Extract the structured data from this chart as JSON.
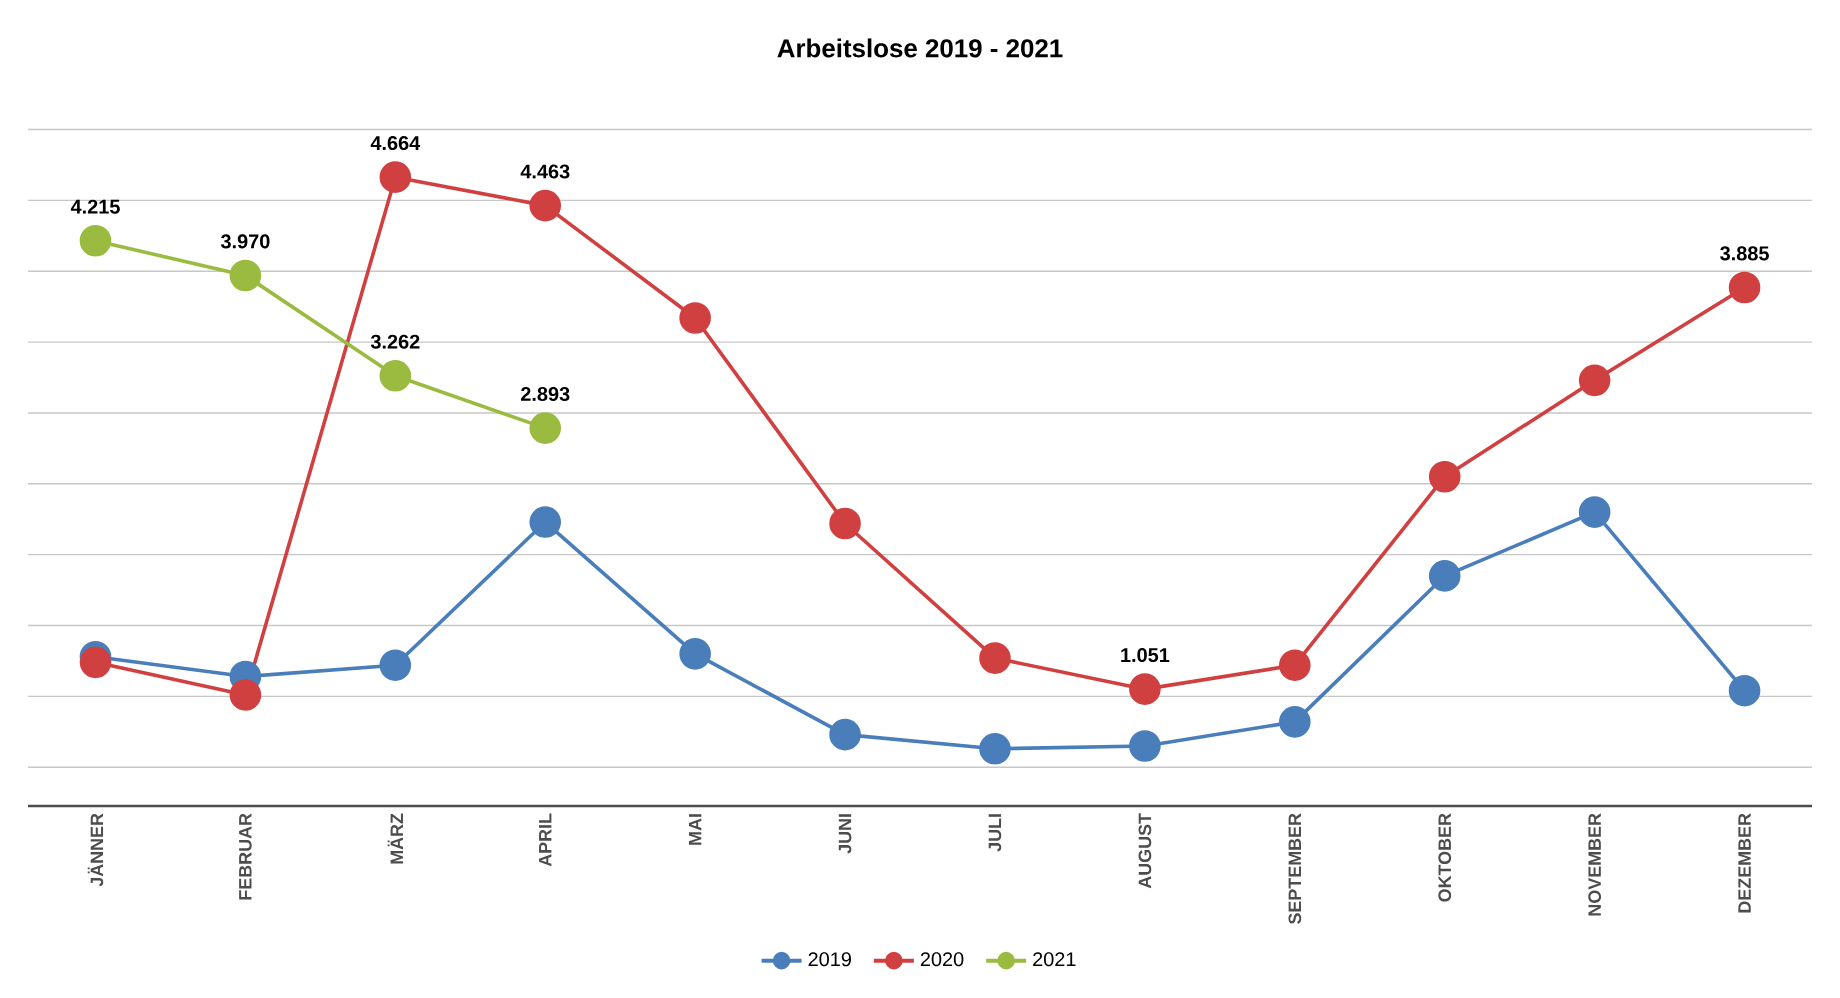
{
  "chart_data": {
    "type": "line",
    "title": "Arbeitslose 2019 - 2021",
    "categories": [
      "JÄNNER",
      "FEBRUAR",
      "MÄRZ",
      "APRIL",
      "MAI",
      "JUNI",
      "JULI",
      "AUGUST",
      "SEPTEMBER",
      "OKTOBER",
      "NOVEMBER",
      "DEZEMBER"
    ],
    "series": [
      {
        "name": "2019",
        "color": "#4a7ebb",
        "values": [
          1.28,
          1.14,
          1.22,
          2.23,
          1.3,
          0.73,
          0.63,
          0.65,
          0.82,
          1.85,
          2.3,
          1.04
        ]
      },
      {
        "name": "2020",
        "color": "#d04040",
        "values": [
          1.24,
          1.01,
          4.664,
          4.463,
          3.67,
          2.22,
          1.27,
          1.051,
          1.22,
          2.55,
          3.23,
          3.885
        ],
        "value_labels": [
          null,
          null,
          "4.664",
          "4.463",
          null,
          null,
          null,
          "1.051",
          null,
          null,
          null,
          "3.885"
        ]
      },
      {
        "name": "2021",
        "color": "#9bbb40",
        "values": [
          4.215,
          3.97,
          3.262,
          2.893,
          null,
          null,
          null,
          null,
          null,
          null,
          null,
          null
        ],
        "value_labels": [
          "4.215",
          "3.970",
          "3.262",
          "2.893",
          null,
          null,
          null,
          null,
          null,
          null,
          null,
          null
        ]
      }
    ],
    "grid": "y",
    "legend": "bottom",
    "marker": "circle",
    "line_style": "solid",
    "tick_labels": "x"
  }
}
